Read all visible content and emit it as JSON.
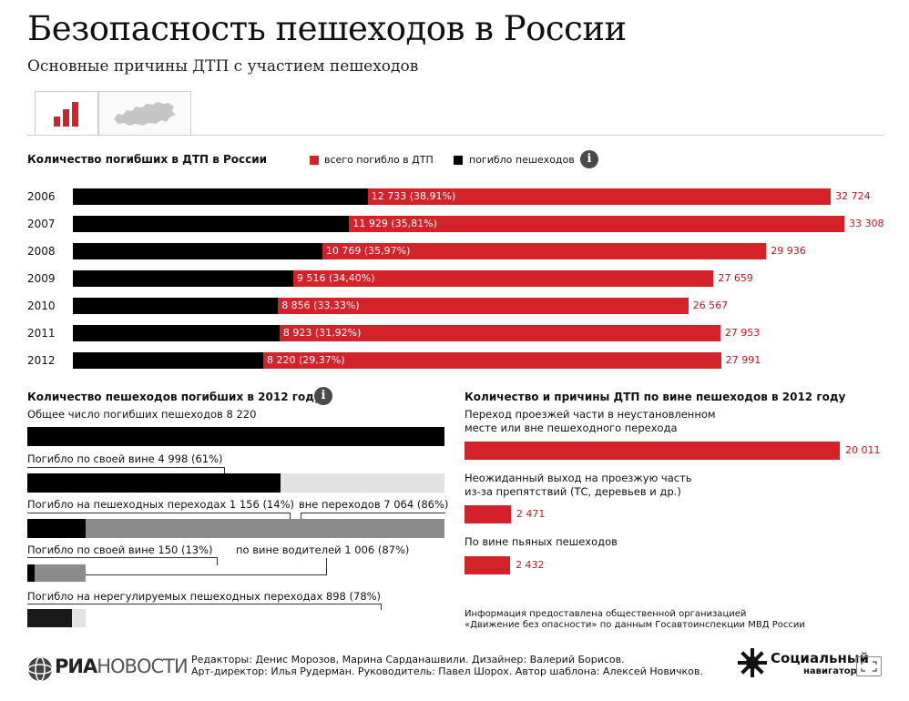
{
  "header": {
    "title": "Безопасность пешеходов в России",
    "subtitle": "Основные причины ДТП с участием пешеходов"
  },
  "tabs": [
    {
      "icon": "bar-chart-icon",
      "active": true
    },
    {
      "icon": "russia-map-icon",
      "active": false
    }
  ],
  "colors": {
    "total": "#d3222a",
    "pedestrians": "#000000",
    "other": "#8b8b8b",
    "track": "#e2e2e2"
  },
  "section1": {
    "title": "Количество погибших в ДТП в России",
    "legend_total": "всего погибло в ДТП",
    "legend_pedestrians": "погибло пешеходов"
  },
  "chart_data": [
    {
      "type": "bar",
      "title": "Количество погибших в ДТП в России",
      "categories": [
        "2006",
        "2007",
        "2008",
        "2009",
        "2010",
        "2011",
        "2012"
      ],
      "series": [
        {
          "name": "всего погибло в ДТП",
          "values": [
            32724,
            33308,
            29936,
            27659,
            26567,
            27953,
            27991
          ],
          "labels": [
            "32 724",
            "33 308",
            "29 936",
            "27 659",
            "26 567",
            "27 953",
            "27 991"
          ]
        },
        {
          "name": "погибло пешеходов",
          "values": [
            12733,
            11929,
            10769,
            9516,
            8856,
            8923,
            8220
          ],
          "labels": [
            "12 733 (38,91%)",
            "11 929 (35,81%)",
            "10 769 (35,97%)",
            "9 516 (34,40%)",
            "8 856 (33,33%)",
            "8 923 (31,92%)",
            "8 220 (29,37%)"
          ]
        }
      ]
    },
    {
      "type": "bar",
      "title": "Количество пешеходов погибших в 2012 году",
      "rows": [
        {
          "label": "Общее число погибших пешеходов 8 220",
          "value": 8220,
          "fraction": 1.0
        },
        {
          "label": "Погибло по своей вине 4 998 (61%)",
          "value": 4998,
          "fraction": 0.61
        },
        {
          "label_left": "Погибло на пешеходных переходах 1 156 (14%)",
          "label_right": "вне переходов 7 064 (86%)",
          "value_left": 1156,
          "value_right": 7064
        },
        {
          "label_left": "Погибло по своей вине  150 (13%)",
          "label_right": "по вине водителей  1 006 (87%)",
          "value_left": 150,
          "value_right": 1006
        },
        {
          "label": "Погибло на нерегулируемых пешеходных переходах 898 (78%)",
          "value": 898,
          "fraction": 0.78
        }
      ]
    },
    {
      "type": "bar",
      "title": "Количество и причины ДТП по вине пешеходов в 2012 году",
      "categories": [
        "Переход проезжей части в неустановленном месте или вне пешеходного перехода",
        "Неожиданный выход на проезжую часть из-за препятствий (ТС, деревьев и др.)",
        "По вине пьяных пешеходов"
      ],
      "values": [
        20011,
        2471,
        2432
      ],
      "labels": [
        "20 011",
        "2 471",
        "2 432"
      ]
    }
  ],
  "section2": {
    "title": "Количество пешеходов погибших в 2012 году",
    "row1": "Общее число погибших пешеходов 8 220",
    "row2": "Погибло по своей вине 4 998 (61%)",
    "row3_left": "Погибло на пешеходных переходах 1 156 (14%)",
    "row3_right": "вне переходов 7 064 (86%)",
    "row4_left": "Погибло по своей вине  150 (13%)",
    "row4_right": "по вине водителей  1 006 (87%)",
    "row5": "Погибло на нерегулируемых пешеходных переходах 898 (78%)"
  },
  "section3": {
    "title": "Количество и причины ДТП по вине пешеходов в 2012 году",
    "cat1_line1": "Переход проезжей части в неустановленном",
    "cat1_line2": "месте или вне пешеходного перехода",
    "cat2_line1": "Неожиданный выход на проезжую часть",
    "cat2_line2": "из-за препятствий (ТС, деревьев и др.)",
    "cat3_line1": "По вине пьяных пешеходов",
    "source_line1": "Информация предоставлена общественной организацией",
    "source_line2": "«Движение без опасности» по данным Госавтоинспекции МВД России"
  },
  "footer": {
    "logo_text_bold": "РИА",
    "logo_text_light": "НОВОСТИ",
    "credits_line1": "Редакторы: Денис Морозов, Марина Сарданашвили. Дизайнер: Валерий Борисов.",
    "credits_line2": "Арт-директор: Илья Рудерман. Руководитель: Павел Шорох. Автор шаблона: Алексей Новичков.",
    "social_line1": "Социальный",
    "social_line2": "навигатор"
  }
}
